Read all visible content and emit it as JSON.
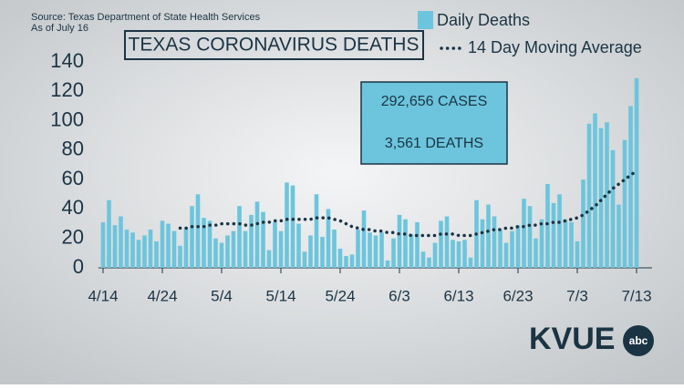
{
  "chart_data": {
    "type": "bar",
    "source": "Source: Texas Department of State Health Services",
    "as_of": "As of July 16",
    "title": "TEXAS CORONAVIRUS DEATHS",
    "annotations": [
      "292,656 CASES",
      "3,561 DEATHS"
    ],
    "categories": [
      "4/14",
      null,
      null,
      null,
      null,
      null,
      null,
      null,
      null,
      null,
      "4/24",
      null,
      null,
      null,
      null,
      null,
      null,
      null,
      null,
      null,
      "5/4",
      null,
      null,
      null,
      null,
      null,
      null,
      null,
      null,
      null,
      "5/14",
      null,
      null,
      null,
      null,
      null,
      null,
      null,
      null,
      null,
      "5/24",
      null,
      null,
      null,
      null,
      null,
      null,
      null,
      null,
      null,
      "6/3",
      null,
      null,
      null,
      null,
      null,
      null,
      null,
      null,
      null,
      "6/13",
      null,
      null,
      null,
      null,
      null,
      null,
      null,
      null,
      null,
      "6/23",
      null,
      null,
      null,
      null,
      null,
      null,
      null,
      null,
      null,
      "7/3",
      null,
      null,
      null,
      null,
      null,
      null,
      null,
      null,
      null,
      "7/13",
      null,
      null
    ],
    "series": [
      {
        "name": "Daily Deaths",
        "color": "#6cc5dc",
        "values": [
          31,
          46,
          29,
          35,
          26,
          24,
          19,
          22,
          26,
          18,
          32,
          30,
          25,
          15,
          27,
          42,
          50,
          34,
          32,
          20,
          17,
          22,
          25,
          42,
          25,
          36,
          45,
          38,
          12,
          31,
          25,
          58,
          56,
          30,
          11,
          22,
          50,
          21,
          40,
          26,
          13,
          8,
          9,
          26,
          39,
          24,
          22,
          24,
          5,
          20,
          36,
          33,
          23,
          31,
          11,
          7,
          17,
          32,
          35,
          19,
          18,
          19,
          7,
          46,
          33,
          43,
          35,
          26,
          17,
          25,
          29,
          47,
          42,
          20,
          33,
          57,
          44,
          50,
          33,
          31,
          18,
          60,
          98,
          105,
          95,
          99,
          80,
          43,
          87,
          110,
          129,
          null,
          null
        ]
      },
      {
        "name": "14 Day Moving Average",
        "color": "#1b3444",
        "values": [
          null,
          null,
          null,
          null,
          null,
          null,
          null,
          null,
          null,
          null,
          null,
          null,
          null,
          27,
          27,
          28,
          28,
          28,
          29,
          29,
          30,
          30,
          30,
          30,
          29,
          29,
          30,
          31,
          31,
          32,
          32,
          33,
          33,
          33,
          33,
          33,
          34,
          34,
          34,
          33,
          32,
          30,
          28,
          27,
          26,
          26,
          25,
          25,
          24,
          24,
          23,
          23,
          22,
          22,
          22,
          22,
          22,
          23,
          23,
          23,
          22,
          22,
          22,
          23,
          24,
          25,
          26,
          26,
          27,
          27,
          28,
          28,
          29,
          29,
          30,
          30,
          31,
          31,
          32,
          33,
          34,
          36,
          39,
          42,
          46,
          50,
          54,
          57,
          60,
          63,
          66,
          null,
          null
        ]
      }
    ],
    "ylim": [
      0,
      140
    ],
    "yticks": [
      0,
      20,
      40,
      60,
      80,
      100,
      120,
      140
    ],
    "logo": {
      "text": "KVUE",
      "badge": "abc"
    }
  }
}
